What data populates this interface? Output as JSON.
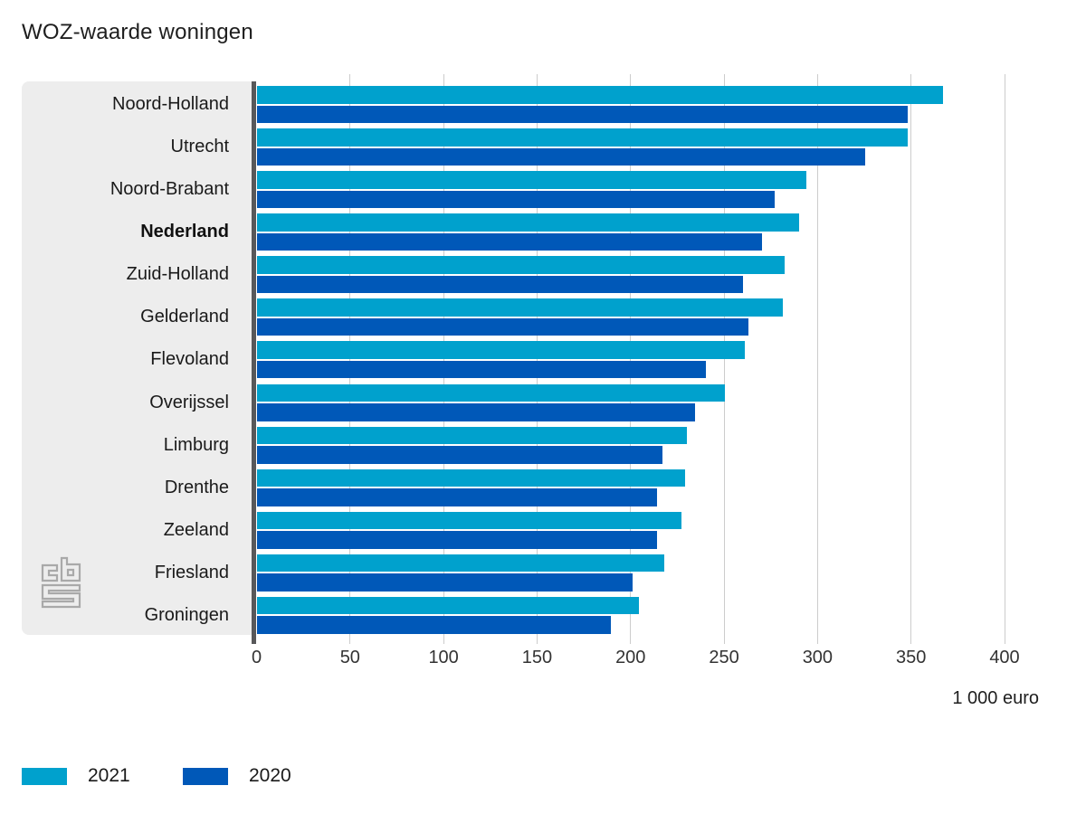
{
  "title": "WOZ-waarde woningen",
  "chart_data": {
    "type": "bar",
    "orientation": "horizontal",
    "title": "WOZ-waarde woningen",
    "unit_label": "1 000 euro",
    "categories": [
      "Noord-Holland",
      "Utrecht",
      "Noord-Brabant",
      "Nederland",
      "Zuid-Holland",
      "Gelderland",
      "Flevoland",
      "Overijssel",
      "Limburg",
      "Drenthe",
      "Zeeland",
      "Friesland",
      "Groningen"
    ],
    "emphasized_category": "Nederland",
    "series": [
      {
        "name": "2021",
        "color": "#00a1cd",
        "values": [
          367,
          348,
          294,
          290,
          282,
          281,
          261,
          250,
          230,
          229,
          227,
          218,
          204
        ]
      },
      {
        "name": "2020",
        "color": "#0058b8",
        "values": [
          348,
          325,
          277,
          270,
          260,
          263,
          240,
          234,
          217,
          214,
          214,
          201,
          189
        ]
      }
    ],
    "x_ticks": [
      0,
      50,
      100,
      150,
      200,
      250,
      300,
      350,
      400
    ],
    "xlim": [
      0,
      432
    ],
    "grid": "vertical",
    "legend_position": "bottom-left",
    "label_panel_color": "#ededed",
    "axis_line_color": "#58585a",
    "gridline_color": "#cccccc"
  },
  "branding": {
    "logo": "cbs-logo",
    "logo_color": "#a9a9a9"
  }
}
